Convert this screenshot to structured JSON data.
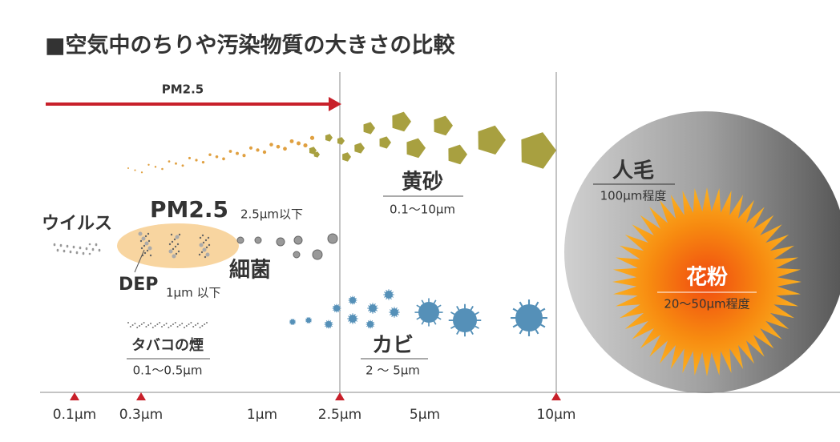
{
  "title": "■空気中のちりや汚染物質の大きさの比較",
  "pm25_arrow": "PM2.5",
  "particles": {
    "yellow_sand": {
      "name": "黄砂",
      "size": "0.1〜10μm"
    },
    "human_hair": {
      "name": "人毛",
      "size": "100μm程度"
    },
    "pollen": {
      "name": "花粉",
      "size": "20〜50μm程度"
    },
    "virus": {
      "name": "ウイルス"
    },
    "pm25": {
      "name": "PM2.5",
      "size": "2.5μm以下"
    },
    "bacteria": {
      "name": "細菌"
    },
    "dep": {
      "name": "DEP",
      "size": "1μm 以下"
    },
    "tobacco_smoke": {
      "name": "タバコの煙",
      "size": "0.1〜0.5μm"
    },
    "mold": {
      "name": "カビ",
      "size": "2 〜 5μm"
    }
  },
  "axis_ticks": [
    "0.1μm",
    "0.3μm",
    "1μm",
    "2.5μm",
    "5μm",
    "10μm"
  ]
}
